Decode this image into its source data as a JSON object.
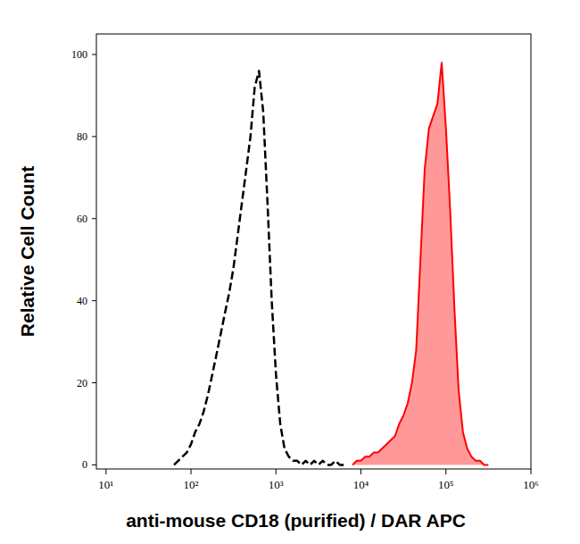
{
  "chart_data": {
    "type": "line",
    "log": "x",
    "grid": false,
    "x_label": "anti-mouse CD18 (purified) / DAR APC",
    "y_label": "Relative Cell Count",
    "xlim": [
      7.7,
      1000000
    ],
    "ylim": [
      -1,
      105
    ],
    "xticks": [
      {
        "value": 10,
        "label": "10¹"
      },
      {
        "value": 100,
        "label": "10²"
      },
      {
        "value": 1000,
        "label": "10³"
      },
      {
        "value": 10000,
        "label": "10⁴"
      },
      {
        "value": 100000,
        "label": "10⁵"
      },
      {
        "value": 1000000,
        "label": "10⁶"
      }
    ],
    "yticks": [
      0,
      20,
      40,
      60,
      80,
      100
    ],
    "x": [
      63.1,
      70.8,
      79.4,
      89.1,
      100,
      112,
      126,
      141,
      158,
      178,
      200,
      224,
      251,
      282,
      316,
      355,
      398,
      447,
      501,
      562,
      631,
      708,
      794,
      891,
      1000,
      1122,
      1259,
      1413,
      1585,
      1778,
      1995,
      2239,
      2512,
      2818,
      3162,
      3548,
      3981,
      4467,
      5012,
      5623,
      6310,
      7079,
      7943,
      8913,
      10000,
      11220,
      12589,
      14125,
      15849,
      17783,
      19953,
      22387,
      25119,
      28184,
      31623,
      35481,
      39811,
      44668,
      50119,
      56234,
      63096,
      70795,
      79433,
      89125,
      100000,
      112202,
      125893,
      141254,
      158489,
      177828,
      199526,
      223872,
      251189,
      281838,
      316228,
      354813,
      398107
    ],
    "series": [
      {
        "type": "line",
        "color": "#000000",
        "line_style": "dashed",
        "values": [
          0,
          1,
          2,
          3,
          5,
          8,
          10,
          13,
          17,
          22,
          27,
          32,
          37,
          42,
          48,
          56,
          64,
          72,
          80,
          92,
          96,
          86,
          64,
          40,
          22,
          10,
          4,
          2,
          1,
          1,
          0,
          1,
          0,
          1,
          0,
          1,
          0,
          0,
          1,
          0,
          0,
          null,
          null,
          null,
          null,
          null,
          null,
          null,
          null,
          null,
          null,
          null,
          null,
          null,
          null,
          null,
          null,
          null,
          null,
          null,
          null,
          null,
          null,
          null,
          null,
          null,
          null,
          null,
          null,
          null,
          null,
          null,
          null,
          null,
          null,
          null,
          null
        ]
      },
      {
        "type": "area",
        "color": "#ff0000",
        "line_style": "solid",
        "values": [
          null,
          null,
          null,
          null,
          null,
          null,
          null,
          null,
          null,
          null,
          null,
          null,
          null,
          null,
          null,
          null,
          null,
          null,
          null,
          null,
          null,
          null,
          null,
          null,
          null,
          null,
          null,
          null,
          null,
          null,
          null,
          null,
          null,
          null,
          null,
          null,
          null,
          null,
          null,
          null,
          null,
          null,
          0,
          1,
          1,
          2,
          2,
          3,
          3,
          4,
          5,
          6,
          7,
          10,
          12,
          15,
          20,
          28,
          50,
          72,
          82,
          85,
          88,
          98,
          82,
          62,
          38,
          18,
          8,
          4,
          2,
          1,
          1,
          0,
          0,
          null,
          null
        ]
      }
    ]
  }
}
